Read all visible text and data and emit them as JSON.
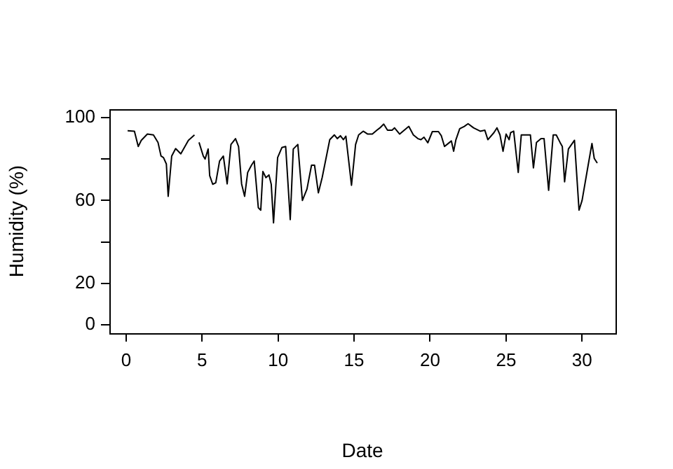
{
  "chart_data": {
    "type": "line",
    "xlabel": "Date",
    "ylabel": "Humidity (%)",
    "xlim": [
      -1.1,
      32.2
    ],
    "xticks": [
      0,
      5,
      10,
      15,
      20,
      25,
      30
    ],
    "ylim": [
      -4,
      104
    ],
    "yticks": [
      0,
      20,
      {
        "value": 40,
        "label": null
      },
      60,
      {
        "value": 80,
        "label": null
      },
      100
    ],
    "grid": false,
    "legend": false,
    "marker": "none",
    "line_style": "solid",
    "series": [
      {
        "color": "#000000",
        "x": [
          0.1,
          0.55,
          0.8,
          1.0,
          1.4,
          1.8,
          2.1,
          2.3,
          2.46,
          2.65,
          2.77,
          3.0,
          3.26,
          3.6,
          4.1,
          4.5,
          4.65,
          4.8,
          5.08,
          5.2,
          5.4,
          5.5,
          5.7,
          5.9,
          6.15,
          6.4,
          6.65,
          6.9,
          7.2,
          7.4,
          7.6,
          7.8,
          8.0,
          8.25,
          8.43,
          8.7,
          8.86,
          9.0,
          9.2,
          9.4,
          9.55,
          9.7,
          9.97,
          10.25,
          10.5,
          10.8,
          11.0,
          11.3,
          11.6,
          11.9,
          12.2,
          12.4,
          12.65,
          12.9,
          13.4,
          13.7,
          13.9,
          14.1,
          14.3,
          14.46,
          14.7,
          14.83,
          15.1,
          15.3,
          15.6,
          15.9,
          16.2,
          16.5,
          16.7,
          16.95,
          17.2,
          17.5,
          17.66,
          18.0,
          18.3,
          18.6,
          18.9,
          19.2,
          19.4,
          19.6,
          19.85,
          20.15,
          20.55,
          20.74,
          20.95,
          21.2,
          21.4,
          21.55,
          21.7,
          21.95,
          22.25,
          22.5,
          22.86,
          23.3,
          23.6,
          23.8,
          24.2,
          24.4,
          24.6,
          24.8,
          25.0,
          25.2,
          25.3,
          25.5,
          25.8,
          26.0,
          26.4,
          26.6,
          26.8,
          27.0,
          27.3,
          27.5,
          27.8,
          28.1,
          28.3,
          28.55,
          28.7,
          28.85,
          29.1,
          29.5,
          29.8,
          30.0,
          30.4,
          30.65,
          30.8,
          31.0
        ],
        "values": [
          93.6,
          93.4,
          86,
          89,
          92,
          91.6,
          88,
          81.4,
          80.7,
          77.6,
          62,
          81.4,
          85,
          82.5,
          89,
          91.6,
          null,
          88,
          81.4,
          80,
          84.8,
          72,
          67.8,
          68.5,
          79,
          81.4,
          68,
          87,
          89.8,
          86,
          68,
          62,
          73.5,
          77,
          79,
          56.5,
          55.3,
          74,
          71,
          72.3,
          67.8,
          49.2,
          80.7,
          85.5,
          86,
          50.8,
          84.8,
          87,
          60,
          65.5,
          77,
          77,
          63.7,
          71,
          89.3,
          91.6,
          89.8,
          91.2,
          89.3,
          91,
          75.7,
          67.3,
          87,
          91.6,
          93.4,
          92,
          92,
          93.9,
          95,
          96.8,
          93.9,
          93.9,
          95,
          92,
          93.9,
          95.7,
          91.6,
          89.8,
          89.3,
          90.5,
          87.8,
          93.2,
          93.2,
          91.2,
          86,
          87.5,
          88.7,
          83.7,
          89.3,
          94.6,
          95.7,
          97,
          95,
          93.4,
          93.9,
          89.3,
          92.7,
          95,
          91.6,
          83.7,
          92,
          89.3,
          92.7,
          93.4,
          73.5,
          91.6,
          91.6,
          91.6,
          75.7,
          88,
          89.8,
          89.8,
          64.9,
          91.6,
          91.6,
          88,
          86,
          69,
          84.8,
          89,
          55.3,
          60,
          77,
          87.5,
          80.3,
          78
        ]
      }
    ]
  }
}
